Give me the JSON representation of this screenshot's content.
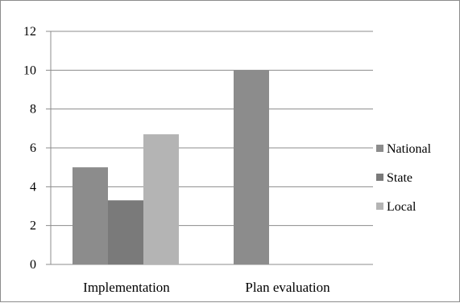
{
  "chart_data": {
    "type": "bar",
    "categories": [
      "Implementation",
      "Plan evaluation"
    ],
    "series": [
      {
        "name": "National",
        "values": [
          5,
          10
        ],
        "color": "#8c8c8c"
      },
      {
        "name": "State",
        "values": [
          3.3,
          0
        ],
        "color": "#7a7a7a"
      },
      {
        "name": "Local",
        "values": [
          6.7,
          0
        ],
        "color": "#b4b4b4"
      }
    ],
    "yticks": [
      "0",
      "2",
      "4",
      "6",
      "8",
      "10",
      "12"
    ],
    "ylim": [
      0,
      12
    ],
    "grid": true,
    "legend_position": "right"
  }
}
